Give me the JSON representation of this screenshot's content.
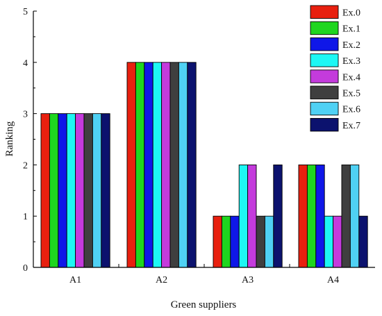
{
  "chart_data": {
    "type": "bar",
    "xlabel": "Green suppliers",
    "ylabel": "Ranking",
    "categories": [
      "A1",
      "A2",
      "A3",
      "A4"
    ],
    "ylim": [
      0,
      5
    ],
    "yticks": [
      "0",
      "1",
      "2",
      "3",
      "4",
      "5"
    ],
    "grid": false,
    "legend_position": "top-right",
    "series": [
      {
        "name": "Ex.0",
        "color": "#e8200f",
        "values": [
          3,
          4,
          1,
          2
        ]
      },
      {
        "name": "Ex.1",
        "color": "#1fd61f",
        "values": [
          3,
          4,
          1,
          2
        ]
      },
      {
        "name": "Ex.2",
        "color": "#0f17e8",
        "values": [
          3,
          4,
          1,
          2
        ]
      },
      {
        "name": "Ex.3",
        "color": "#1df7f4",
        "values": [
          3,
          4,
          2,
          1
        ]
      },
      {
        "name": "Ex.4",
        "color": "#c43bdc",
        "values": [
          3,
          4,
          2,
          1
        ]
      },
      {
        "name": "Ex.5",
        "color": "#3f3f3f",
        "values": [
          3,
          4,
          1,
          2
        ]
      },
      {
        "name": "Ex.6",
        "color": "#4fd1f4",
        "values": [
          3,
          4,
          1,
          2
        ]
      },
      {
        "name": "Ex.7",
        "color": "#0c126e",
        "values": [
          3,
          4,
          2,
          1
        ]
      }
    ]
  }
}
